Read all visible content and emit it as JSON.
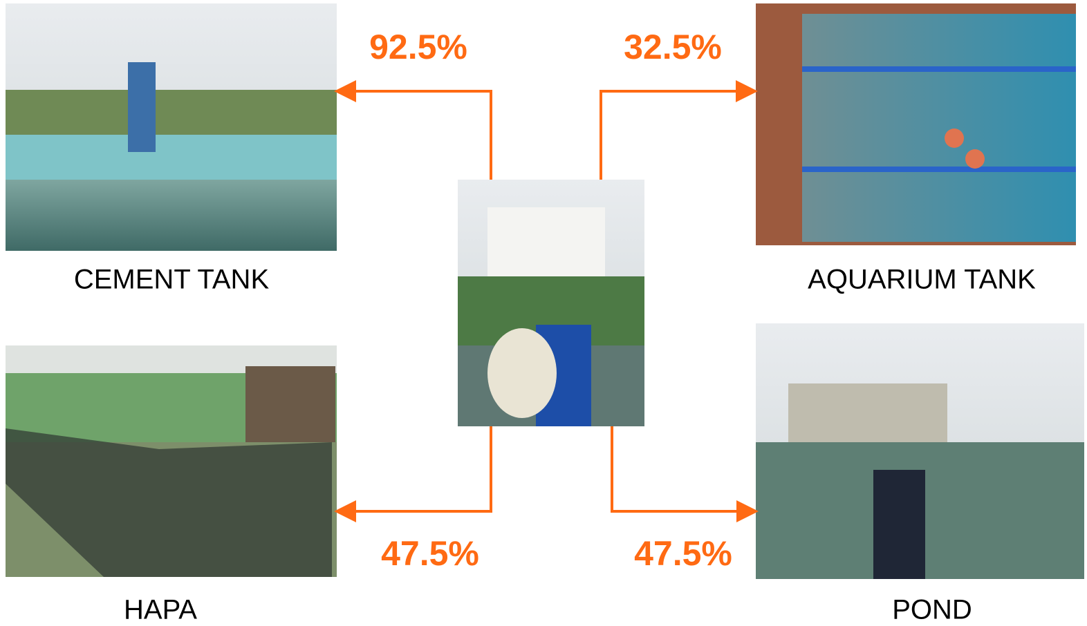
{
  "nodes": [
    {
      "label": "CEMENT TANK",
      "percent": "92.5%"
    },
    {
      "label": "AQUARIUM TANK",
      "percent": "32.5%"
    },
    {
      "label": "HAPA",
      "percent": "47.5%"
    },
    {
      "label": "POND",
      "percent": "47.5%"
    }
  ]
}
